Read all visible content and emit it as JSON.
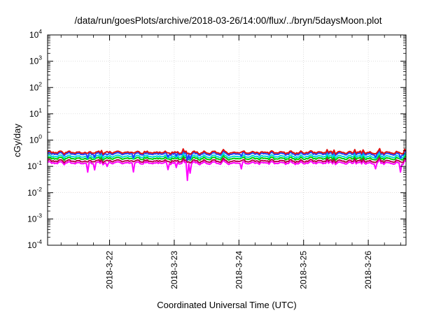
{
  "chart_data": {
    "type": "line",
    "title": "/data/run/goesPlots/archive/2018-03-26/14:00/flux/../bryn/5daysMoon.plot",
    "xlabel": "Coordinated Universal Time (UTC)",
    "ylabel": "cGy/day",
    "yscale": "log",
    "ylim": [
      0.0001,
      10000
    ],
    "y_ticks": [
      {
        "base": "10",
        "exp": "-4"
      },
      {
        "base": "10",
        "exp": "-3"
      },
      {
        "base": "10",
        "exp": "-2"
      },
      {
        "base": "10",
        "exp": "-1"
      },
      {
        "base": "10",
        "exp": "0"
      },
      {
        "base": "10",
        "exp": "1"
      },
      {
        "base": "10",
        "exp": "2"
      },
      {
        "base": "10",
        "exp": "3"
      },
      {
        "base": "10",
        "exp": "4"
      }
    ],
    "x_range": [
      "2018-03-21 01:00",
      "2018-03-26 14:00"
    ],
    "x_ticks": [
      "2018-3-22",
      "2018-3-23",
      "2018-3-24",
      "2018-3-25",
      "2018-3-26"
    ],
    "grid": true,
    "series": [
      {
        "color": "#ff00ff",
        "base": 0.135,
        "dip": "deep"
      },
      {
        "color": "#b5004a",
        "base": 0.16,
        "dip": "none"
      },
      {
        "color": "#00c800",
        "base": 0.2,
        "dip": "none"
      },
      {
        "color": "#00d8d8",
        "base": 0.24,
        "dip": "small"
      },
      {
        "color": "#2040ff",
        "base": 0.3,
        "dip": "medium"
      },
      {
        "color": "#e01010",
        "base": 0.34,
        "dip": "none"
      }
    ],
    "dip_days": [
      0.62,
      0.72,
      0.92,
      1.32,
      1.86,
      1.98,
      2.2,
      3.0,
      5.08,
      5.46
    ]
  }
}
